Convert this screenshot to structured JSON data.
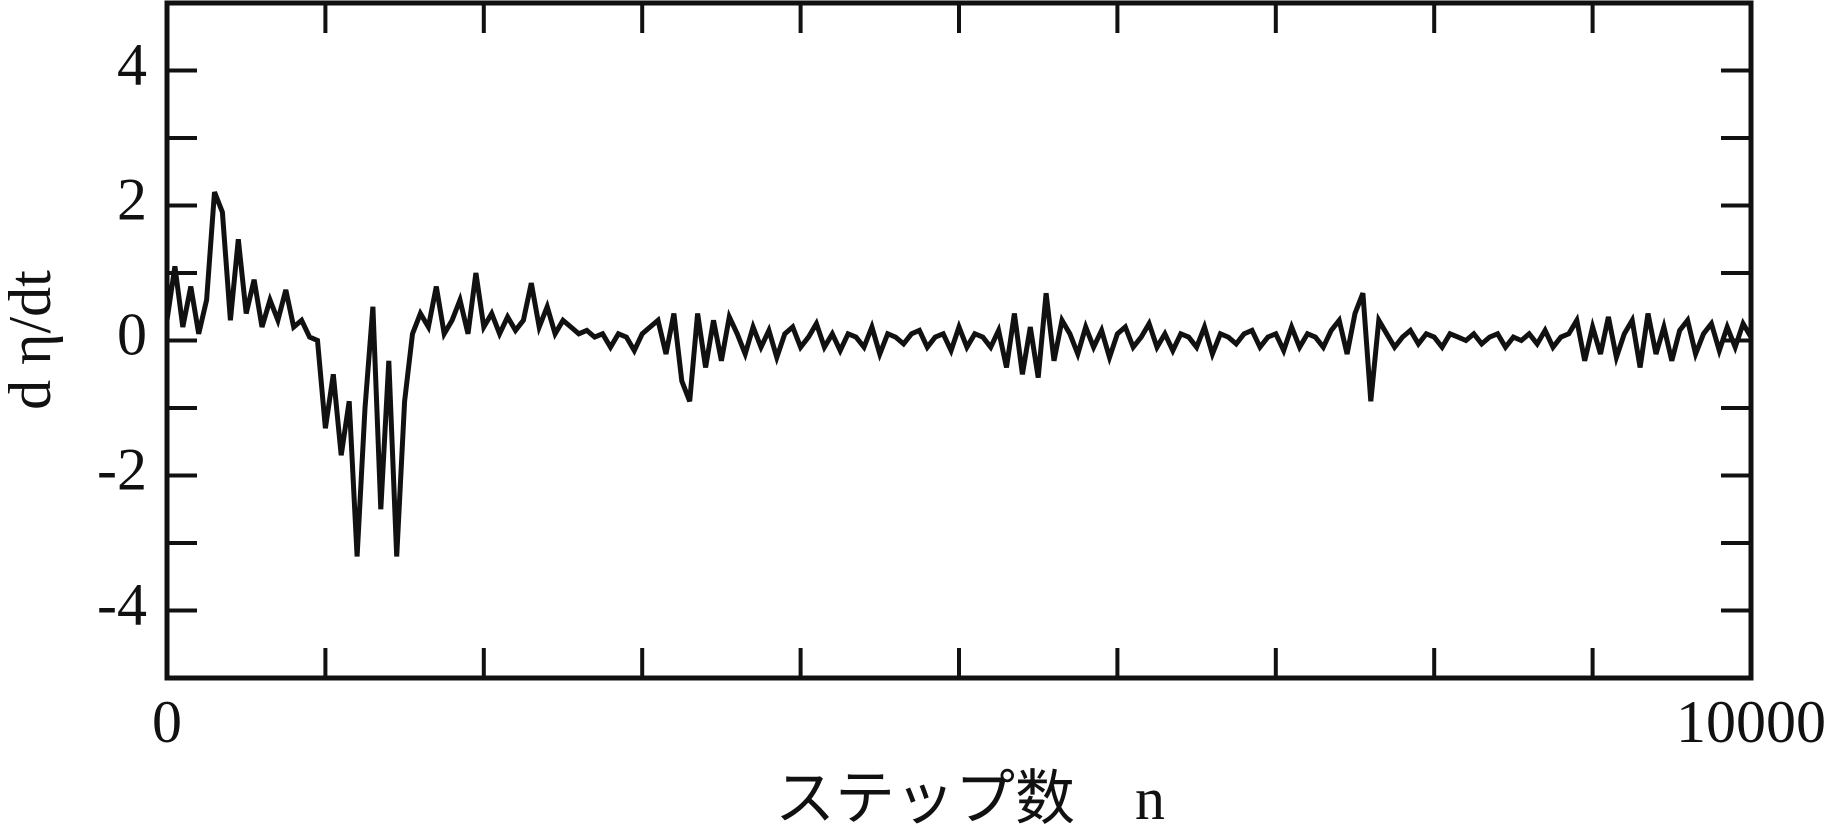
{
  "chart_data": {
    "type": "line",
    "xlabel": "ステップ数　n",
    "ylabel": "d η/dt",
    "xlim": [
      0,
      10000
    ],
    "xticks": [
      0,
      10000
    ],
    "xminorticks": [
      1000,
      2000,
      3000,
      4000,
      5000,
      6000,
      7000,
      8000,
      9000
    ],
    "ylim": [
      -5,
      5
    ],
    "yticks": [
      -4,
      -2,
      0,
      2,
      4
    ],
    "yminorticks": [
      -3,
      -1,
      1,
      3
    ],
    "series": [
      {
        "color": "#111111",
        "x": [
          0,
          50,
          100,
          150,
          200,
          250,
          300,
          350,
          400,
          450,
          500,
          550,
          600,
          650,
          700,
          750,
          800,
          850,
          900,
          950,
          1000,
          1050,
          1100,
          1150,
          1200,
          1250,
          1300,
          1350,
          1400,
          1450,
          1500,
          1550,
          1600,
          1650,
          1700,
          1750,
          1800,
          1850,
          1900,
          1950,
          2000,
          2050,
          2100,
          2150,
          2200,
          2250,
          2300,
          2350,
          2400,
          2450,
          2500,
          2550,
          2600,
          2650,
          2700,
          2750,
          2800,
          2850,
          2900,
          2950,
          3000,
          3050,
          3100,
          3150,
          3200,
          3250,
          3300,
          3350,
          3400,
          3450,
          3500,
          3550,
          3600,
          3650,
          3700,
          3750,
          3800,
          3850,
          3900,
          3950,
          4000,
          4050,
          4100,
          4150,
          4200,
          4250,
          4300,
          4350,
          4400,
          4450,
          4500,
          4550,
          4600,
          4650,
          4700,
          4750,
          4800,
          4850,
          4900,
          4950,
          5000,
          5050,
          5100,
          5150,
          5200,
          5250,
          5300,
          5350,
          5400,
          5450,
          5500,
          5550,
          5600,
          5650,
          5700,
          5750,
          5800,
          5850,
          5900,
          5950,
          6000,
          6050,
          6100,
          6150,
          6200,
          6250,
          6300,
          6350,
          6400,
          6450,
          6500,
          6550,
          6600,
          6650,
          6700,
          6750,
          6800,
          6850,
          6900,
          6950,
          7000,
          7050,
          7100,
          7150,
          7200,
          7250,
          7300,
          7350,
          7400,
          7450,
          7500,
          7550,
          7600,
          7650,
          7700,
          7750,
          7800,
          7850,
          7900,
          7950,
          8000,
          8050,
          8100,
          8150,
          8200,
          8250,
          8300,
          8350,
          8400,
          8450,
          8500,
          8550,
          8600,
          8650,
          8700,
          8750,
          8800,
          8850,
          8900,
          8950,
          9000,
          9050,
          9100,
          9150,
          9200,
          9250,
          9300,
          9350,
          9400,
          9450,
          9500,
          9550,
          9600,
          9650,
          9700,
          9750,
          9800,
          9850,
          9900,
          9950,
          10000
        ],
        "values": [
          0.3,
          1.1,
          0.2,
          0.8,
          0.1,
          0.6,
          2.2,
          1.9,
          0.3,
          1.5,
          0.4,
          0.9,
          0.2,
          0.6,
          0.3,
          0.75,
          0.2,
          0.3,
          0.05,
          0.0,
          -1.3,
          -0.5,
          -1.7,
          -0.9,
          -3.2,
          -1.0,
          0.5,
          -2.5,
          -0.3,
          -3.2,
          -0.9,
          0.1,
          0.4,
          0.2,
          0.8,
          0.1,
          0.3,
          0.6,
          0.1,
          1.0,
          0.2,
          0.4,
          0.1,
          0.35,
          0.15,
          0.3,
          0.85,
          0.2,
          0.5,
          0.1,
          0.3,
          0.2,
          0.1,
          0.15,
          0.05,
          0.1,
          -0.1,
          0.1,
          0.05,
          -0.15,
          0.1,
          0.2,
          0.3,
          -0.2,
          0.4,
          -0.6,
          -0.9,
          0.4,
          -0.4,
          0.3,
          -0.3,
          0.35,
          0.1,
          -0.2,
          0.2,
          -0.1,
          0.15,
          -0.25,
          0.1,
          0.2,
          -0.1,
          0.05,
          0.25,
          -0.1,
          0.1,
          -0.15,
          0.1,
          0.05,
          -0.1,
          0.2,
          -0.2,
          0.1,
          0.05,
          -0.05,
          0.1,
          0.15,
          -0.1,
          0.05,
          0.1,
          -0.15,
          0.2,
          -0.1,
          0.1,
          0.05,
          -0.1,
          0.15,
          -0.4,
          0.4,
          -0.5,
          0.2,
          -0.55,
          0.7,
          -0.3,
          0.3,
          0.1,
          -0.2,
          0.2,
          -0.1,
          0.15,
          -0.25,
          0.1,
          0.2,
          -0.1,
          0.05,
          0.25,
          -0.1,
          0.1,
          -0.15,
          0.1,
          0.05,
          -0.1,
          0.2,
          -0.2,
          0.1,
          0.05,
          -0.05,
          0.1,
          0.15,
          -0.1,
          0.05,
          0.1,
          -0.15,
          0.2,
          -0.1,
          0.1,
          0.05,
          -0.1,
          0.15,
          0.3,
          -0.2,
          0.4,
          0.7,
          -0.9,
          0.3,
          0.1,
          -0.1,
          0.05,
          0.15,
          -0.05,
          0.1,
          0.05,
          -0.1,
          0.1,
          0.05,
          0.0,
          0.1,
          -0.05,
          0.05,
          0.1,
          -0.1,
          0.05,
          0.0,
          0.1,
          -0.05,
          0.15,
          -0.1,
          0.05,
          0.1,
          0.3,
          -0.3,
          0.2,
          -0.2,
          0.35,
          -0.25,
          0.1,
          0.3,
          -0.4,
          0.4,
          -0.2,
          0.2,
          -0.3,
          0.15,
          0.3,
          -0.2,
          0.1,
          0.25,
          -0.15,
          0.2,
          -0.1,
          0.25,
          0.05
        ]
      }
    ]
  }
}
